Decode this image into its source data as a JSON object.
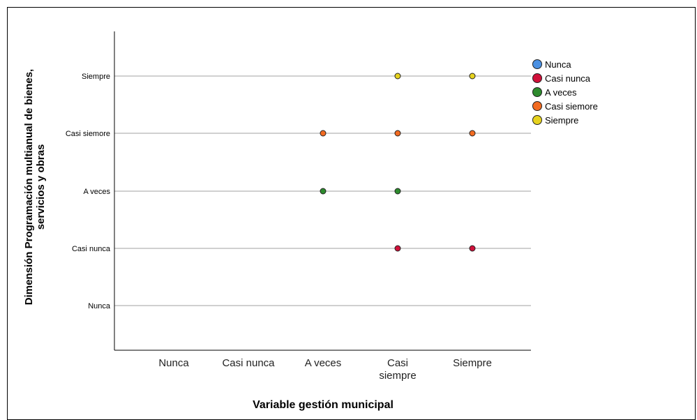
{
  "chart_data": {
    "type": "scatter",
    "title": "",
    "xlabel": "Variable gestión municipal",
    "ylabel": "Dimensión Programación multianual de bienes, servicios y obras",
    "x_categories": [
      "Nunca",
      "Casi nunca",
      "A veces",
      "Casi siempre",
      "Siempre"
    ],
    "y_categories": [
      "Nunca",
      "Casi nunca",
      "A veces",
      "Casi siemore",
      "Siempre"
    ],
    "grid": "horizontal",
    "legend_position": "top-right",
    "series": [
      {
        "name": "Nunca",
        "color": "#4a90e2",
        "points": []
      },
      {
        "name": "Casi nunca",
        "color": "#d0103a",
        "points": [
          [
            "Casi siempre",
            "Casi nunca"
          ],
          [
            "Siempre",
            "Casi nunca"
          ]
        ]
      },
      {
        "name": "A veces",
        "color": "#2e8b2e",
        "points": [
          [
            "A veces",
            "A veces"
          ],
          [
            "Casi siempre",
            "A veces"
          ]
        ]
      },
      {
        "name": "Casi siemore",
        "color": "#f26b21",
        "points": [
          [
            "A veces",
            "Casi siemore"
          ],
          [
            "Casi siempre",
            "Casi siemore"
          ],
          [
            "Siempre",
            "Casi siemore"
          ]
        ]
      },
      {
        "name": "Siempre",
        "color": "#e6d21e",
        "points": [
          [
            "Casi siempre",
            "Siempre"
          ],
          [
            "Siempre",
            "Siempre"
          ]
        ]
      }
    ]
  }
}
